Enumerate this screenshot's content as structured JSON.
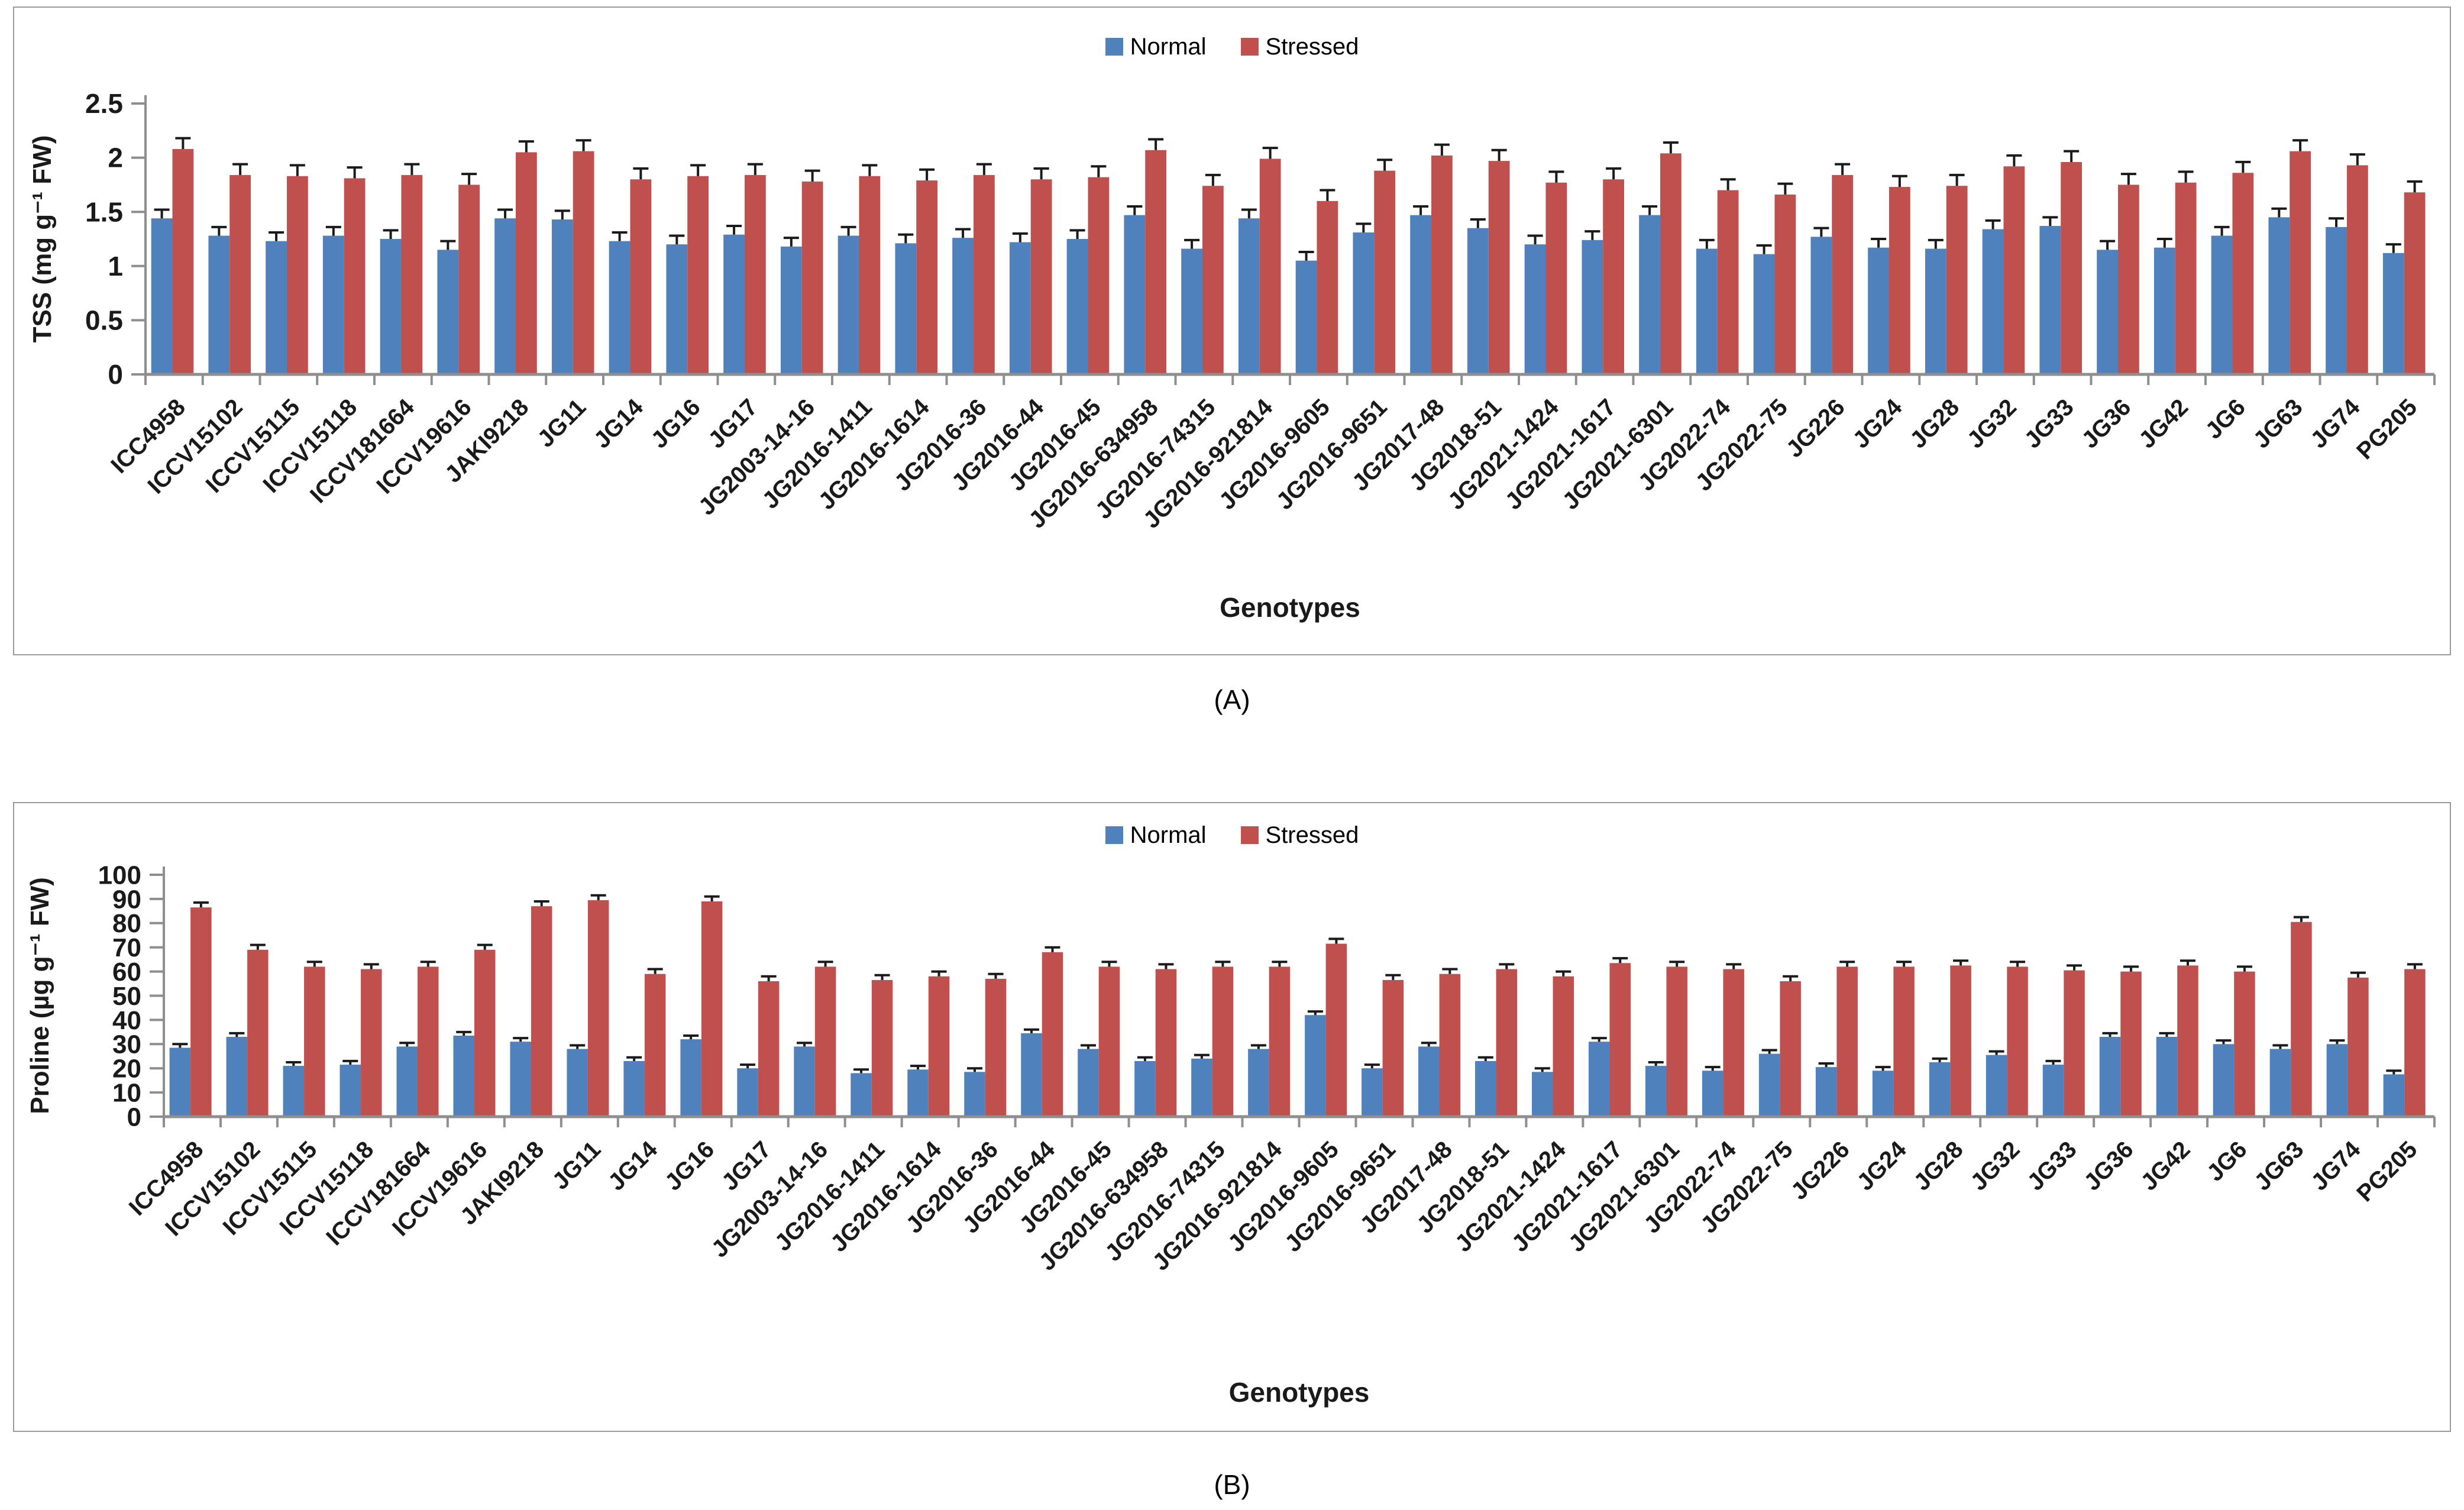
{
  "page": {
    "background": "#ffffff"
  },
  "panels": [
    {
      "caption": "(A)",
      "legend": [
        {
          "label": "Normal",
          "color": "#4F81BD"
        },
        {
          "label": "Stressed",
          "color": "#C0504D"
        }
      ]
    },
    {
      "caption": "(B)",
      "legend": [
        {
          "label": "Normal",
          "color": "#4F81BD"
        },
        {
          "label": "Stressed",
          "color": "#C0504D"
        }
      ]
    }
  ],
  "chart_data": [
    {
      "type": "bar",
      "title": "",
      "xlabel": "Genotypes",
      "ylabel": "TSS (mg g⁻¹ FW)",
      "ylim": [
        0,
        2.5
      ],
      "ytick_step": 0.5,
      "grid": false,
      "legend_position": "top-center",
      "categories": [
        "ICC4958",
        "ICCV15102",
        "ICCV15115",
        "ICCV15118",
        "ICCV181664",
        "ICCV19616",
        "JAKI9218",
        "JG11",
        "JG14",
        "JG16",
        "JG17",
        "JG2003-14-16",
        "JG2016-1411",
        "JG2016-1614",
        "JG2016-36",
        "JG2016-44",
        "JG2016-45",
        "JG2016-634958",
        "JG2016-74315",
        "JG2016-921814",
        "JG2016-9605",
        "JG2016-9651",
        "JG2017-48",
        "JG2018-51",
        "JG2021-1424",
        "JG2021-1617",
        "JG2021-6301",
        "JG2022-74",
        "JG2022-75",
        "JG226",
        "JG24",
        "JG28",
        "JG32",
        "JG33",
        "JG36",
        "JG42",
        "JG6",
        "JG63",
        "JG74",
        "PG205"
      ],
      "series": [
        {
          "name": "Normal",
          "color": "#4F81BD",
          "error_bar": 0.08,
          "values": [
            1.44,
            1.28,
            1.23,
            1.28,
            1.25,
            1.15,
            1.44,
            1.43,
            1.23,
            1.2,
            1.29,
            1.18,
            1.28,
            1.21,
            1.26,
            1.22,
            1.25,
            1.47,
            1.16,
            1.44,
            1.05,
            1.31,
            1.47,
            1.35,
            1.2,
            1.24,
            1.47,
            1.16,
            1.11,
            1.27,
            1.17,
            1.16,
            1.34,
            1.37,
            1.15,
            1.17,
            1.28,
            1.45,
            1.36,
            1.12
          ]
        },
        {
          "name": "Stressed",
          "color": "#C0504D",
          "error_bar": 0.1,
          "values": [
            2.08,
            1.84,
            1.83,
            1.81,
            1.84,
            1.75,
            2.05,
            2.06,
            1.8,
            1.83,
            1.84,
            1.78,
            1.83,
            1.79,
            1.84,
            1.8,
            1.82,
            2.07,
            1.74,
            1.99,
            1.6,
            1.88,
            2.02,
            1.97,
            1.77,
            1.8,
            2.04,
            1.7,
            1.66,
            1.84,
            1.73,
            1.74,
            1.92,
            1.96,
            1.75,
            1.77,
            1.86,
            2.06,
            1.93,
            1.68
          ]
        }
      ]
    },
    {
      "type": "bar",
      "title": "",
      "xlabel": "Genotypes",
      "ylabel": "Proline (µg g⁻¹ FW)",
      "ylim": [
        0,
        100
      ],
      "ytick_step": 10,
      "grid": false,
      "legend_position": "top-center",
      "categories": [
        "ICC4958",
        "ICCV15102",
        "ICCV15115",
        "ICCV15118",
        "ICCV181664",
        "ICCV19616",
        "JAKI9218",
        "JG11",
        "JG14",
        "JG16",
        "JG17",
        "JG2003-14-16",
        "JG2016-1411",
        "JG2016-1614",
        "JG2016-36",
        "JG2016-44",
        "JG2016-45",
        "JG2016-634958",
        "JG2016-74315",
        "JG2016-921814",
        "JG2016-9605",
        "JG2016-9651",
        "JG2017-48",
        "JG2018-51",
        "JG2021-1424",
        "JG2021-1617",
        "JG2021-6301",
        "JG2022-74",
        "JG2022-75",
        "JG226",
        "JG24",
        "JG28",
        "JG32",
        "JG33",
        "JG36",
        "JG42",
        "JG6",
        "JG63",
        "JG74",
        "PG205"
      ],
      "series": [
        {
          "name": "Normal",
          "color": "#4F81BD",
          "error_bar": 1.5,
          "values": [
            28.5,
            33,
            21,
            21.5,
            29,
            33.5,
            31,
            28,
            23,
            32,
            20,
            29,
            18,
            19.5,
            18.5,
            34.5,
            28,
            23,
            24,
            28,
            42,
            20,
            29,
            23,
            18.5,
            31,
            21,
            19,
            26,
            20.5,
            19,
            22.5,
            25.5,
            21.5,
            33,
            33,
            30,
            28,
            30,
            17.5
          ]
        },
        {
          "name": "Stressed",
          "color": "#C0504D",
          "error_bar": 2,
          "values": [
            86.5,
            69,
            62,
            61,
            62,
            69,
            87,
            89.5,
            59,
            89,
            56,
            62,
            56.5,
            58,
            57,
            68,
            62,
            61,
            62,
            62,
            71.5,
            56.5,
            59,
            61,
            58,
            63.5,
            62,
            61,
            56,
            62,
            62,
            62.5,
            62,
            60.5,
            60,
            62.5,
            60,
            80.5,
            57.5,
            61
          ]
        }
      ]
    }
  ]
}
